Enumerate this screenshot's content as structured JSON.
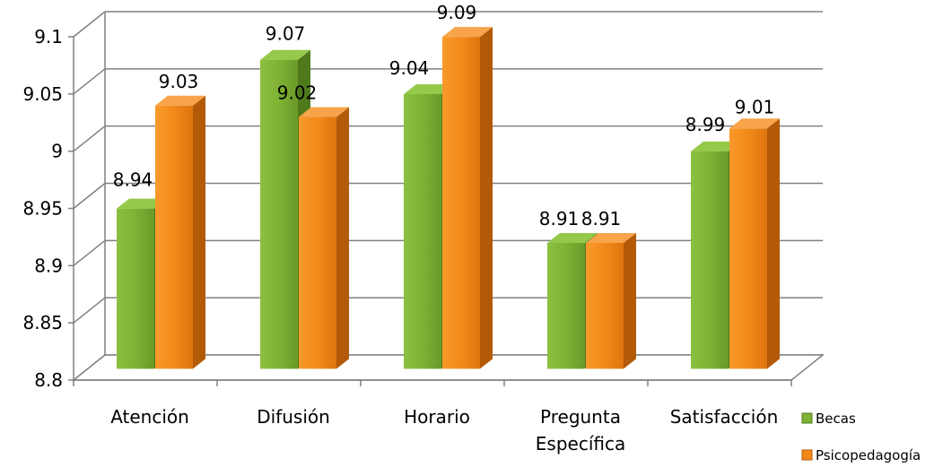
{
  "chart_data": {
    "type": "bar",
    "title": "",
    "xlabel": "",
    "ylabel": "",
    "categories": [
      [
        "Atención"
      ],
      [
        "Difusión"
      ],
      [
        "Horario"
      ],
      [
        "Pregunta",
        "Específica"
      ],
      [
        "Satisfacción"
      ]
    ],
    "series": [
      {
        "name": "Becas",
        "values": [
          8.94,
          9.07,
          9.04,
          8.91,
          8.99
        ],
        "color": "#7fb135",
        "side_color": "#4e7a1c",
        "top_color": "#94c94a"
      },
      {
        "name": "Psicopedagogía",
        "values": [
          9.03,
          9.02,
          9.09,
          8.91,
          9.01
        ],
        "color": "#f28a1a",
        "side_color": "#b35a08",
        "top_color": "#f7a44a"
      }
    ],
    "value_labels": [
      [
        "8.94",
        "9.07",
        "9.04",
        "8.91",
        "8.99"
      ],
      [
        "9.03",
        "9.02",
        "9.09",
        "8.91",
        "9.01"
      ]
    ],
    "ylim": [
      8.8,
      9.1
    ],
    "yticks": [
      "8.8",
      "8.85",
      "8.9",
      "8.95",
      "9",
      "9.05",
      "9.1"
    ],
    "ytick_values": [
      8.8,
      8.85,
      8.9,
      8.95,
      9.0,
      9.05,
      9.1
    ],
    "grid": true,
    "legend_position": "right-bottom",
    "style": "3d-column"
  }
}
